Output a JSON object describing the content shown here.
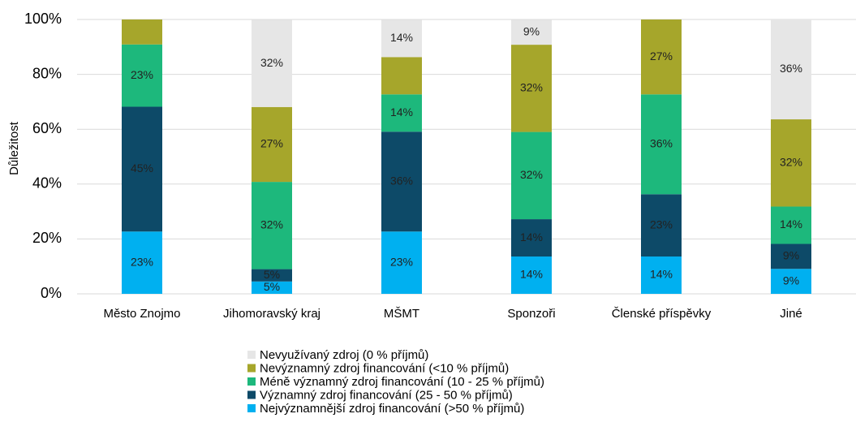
{
  "chart_data": {
    "type": "stacked_bar",
    "y_label": "Důležitost",
    "categories": [
      "Město Znojmo",
      "Jihomoravský kraj",
      "MŠMT",
      "Sponzoři",
      "Členské příspěvky",
      "Jiné"
    ],
    "series": [
      {
        "name": "Nejvýznamnější zdroj financování (>50 % příjmů)",
        "color": "#00b0f0",
        "values": [
          22.7,
          4.5,
          22.7,
          13.6,
          13.6,
          9.1
        ],
        "value_labels": [
          "23%",
          "5%",
          "23%",
          "14%",
          "14%",
          "9%"
        ]
      },
      {
        "name": "Významný zdroj financování (25 - 50 % příjmů)",
        "color": "#0d4a68",
        "values": [
          45.5,
          4.5,
          36.4,
          13.6,
          22.7,
          9.1
        ],
        "value_labels": [
          "45%",
          "5%",
          "36%",
          "14%",
          "23%",
          "9%"
        ]
      },
      {
        "name": "Méně významný zdroj financování (10 - 25 % příjmů)",
        "color": "#1db87c",
        "values": [
          22.7,
          31.8,
          13.6,
          31.8,
          36.4,
          13.6
        ],
        "value_labels": [
          "23%",
          "32%",
          "14%",
          "32%",
          "36%",
          "14%"
        ]
      },
      {
        "name": "Nevýznamný zdroj financování (<10 % příjmů)",
        "color": "#a6a62b",
        "values": [
          9.1,
          27.3,
          13.6,
          31.8,
          27.3,
          31.8
        ],
        "value_labels": [
          null,
          "27%",
          null,
          "32%",
          "27%",
          "32%"
        ]
      },
      {
        "name": "Nevyužívaný zdroj (0 % příjmů)",
        "color": "#e6e6e6",
        "values": [
          0,
          31.8,
          13.6,
          9.1,
          0,
          36.4
        ],
        "value_labels": [
          null,
          "32%",
          "14%",
          "9%",
          null,
          "36%"
        ]
      }
    ],
    "ylim": [
      0,
      100
    ],
    "yticks": [
      {
        "value": 0,
        "label": "0%"
      },
      {
        "value": 20,
        "label": "20%"
      },
      {
        "value": 40,
        "label": "40%"
      },
      {
        "value": 60,
        "label": "60%"
      },
      {
        "value": 80,
        "label": "80%"
      },
      {
        "value": 100,
        "label": "100%"
      }
    ],
    "grid": true
  }
}
